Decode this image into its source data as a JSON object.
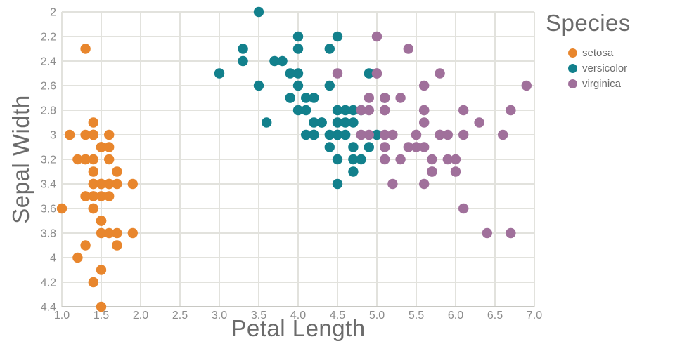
{
  "chart_data": {
    "type": "scatter",
    "title": "",
    "xlabel": "Petal Length",
    "ylabel": "Sepal Width",
    "xlim": [
      1.0,
      7.0
    ],
    "ylim": [
      2.0,
      4.4
    ],
    "y_axis_reversed": true,
    "grid": true,
    "x_ticks": [
      1.0,
      1.5,
      2.0,
      2.5,
      3.0,
      3.5,
      4.0,
      4.5,
      5.0,
      5.5,
      6.0,
      6.5,
      7.0
    ],
    "x_tick_labels": [
      "1.0",
      "1.5",
      "2.0",
      "2.5",
      "3.0",
      "3.5",
      "4.0",
      "4.5",
      "5.0",
      "5.5",
      "6.0",
      "6.5",
      "7.0"
    ],
    "y_ticks": [
      2.0,
      2.2,
      2.4,
      2.6,
      2.8,
      3.0,
      3.2,
      3.4,
      3.6,
      3.8,
      4.0,
      4.2,
      4.4
    ],
    "y_tick_labels": [
      "2",
      "2.2",
      "2.4",
      "2.6",
      "2.8",
      "3",
      "3.2",
      "3.4",
      "3.6",
      "3.8",
      "4",
      "4.2",
      "4.4"
    ],
    "legend_title": "Species",
    "legend_position": "top-right-outside",
    "colors": {
      "grid": "#e2e2dd",
      "axis_line": "#c8c8c3",
      "tick_label": "#8c8c8c",
      "title_text": "#6b6b6b"
    },
    "series": [
      {
        "name": "setosa",
        "color": "#e8862d",
        "points": [
          [
            1.4,
            3.5
          ],
          [
            1.4,
            3.0
          ],
          [
            1.3,
            3.2
          ],
          [
            1.5,
            3.1
          ],
          [
            1.4,
            3.6
          ],
          [
            1.7,
            3.9
          ],
          [
            1.4,
            3.4
          ],
          [
            1.5,
            3.4
          ],
          [
            1.4,
            2.9
          ],
          [
            1.5,
            3.1
          ],
          [
            1.5,
            3.7
          ],
          [
            1.6,
            3.4
          ],
          [
            1.4,
            3.0
          ],
          [
            1.1,
            3.0
          ],
          [
            1.2,
            4.0
          ],
          [
            1.5,
            4.4
          ],
          [
            1.3,
            3.9
          ],
          [
            1.4,
            3.5
          ],
          [
            1.7,
            3.8
          ],
          [
            1.5,
            3.8
          ],
          [
            1.7,
            3.4
          ],
          [
            1.5,
            3.7
          ],
          [
            1.0,
            3.6
          ],
          [
            1.7,
            3.3
          ],
          [
            1.9,
            3.4
          ],
          [
            1.6,
            3.0
          ],
          [
            1.6,
            3.4
          ],
          [
            1.5,
            3.5
          ],
          [
            1.4,
            3.4
          ],
          [
            1.6,
            3.2
          ],
          [
            1.6,
            3.1
          ],
          [
            1.5,
            3.4
          ],
          [
            1.5,
            4.1
          ],
          [
            1.4,
            4.2
          ],
          [
            1.5,
            3.1
          ],
          [
            1.2,
            3.2
          ],
          [
            1.3,
            3.5
          ],
          [
            1.4,
            3.6
          ],
          [
            1.3,
            3.0
          ],
          [
            1.5,
            3.4
          ],
          [
            1.3,
            3.5
          ],
          [
            1.3,
            2.3
          ],
          [
            1.3,
            3.2
          ],
          [
            1.6,
            3.5
          ],
          [
            1.9,
            3.8
          ],
          [
            1.4,
            3.0
          ],
          [
            1.6,
            3.8
          ],
          [
            1.4,
            3.2
          ],
          [
            1.5,
            3.7
          ],
          [
            1.4,
            3.3
          ]
        ]
      },
      {
        "name": "versicolor",
        "color": "#12808c",
        "points": [
          [
            4.7,
            3.2
          ],
          [
            4.5,
            3.2
          ],
          [
            4.9,
            3.1
          ],
          [
            4.0,
            2.3
          ],
          [
            4.6,
            2.8
          ],
          [
            4.5,
            2.8
          ],
          [
            4.7,
            3.3
          ],
          [
            3.3,
            2.4
          ],
          [
            4.6,
            2.9
          ],
          [
            3.9,
            2.7
          ],
          [
            3.5,
            2.0
          ],
          [
            4.2,
            3.0
          ],
          [
            4.0,
            2.2
          ],
          [
            4.7,
            2.9
          ],
          [
            3.6,
            2.9
          ],
          [
            4.4,
            3.1
          ],
          [
            4.5,
            3.0
          ],
          [
            4.1,
            2.7
          ],
          [
            4.5,
            2.2
          ],
          [
            3.9,
            2.5
          ],
          [
            4.8,
            3.2
          ],
          [
            4.0,
            2.8
          ],
          [
            4.9,
            2.5
          ],
          [
            4.7,
            2.8
          ],
          [
            4.3,
            2.9
          ],
          [
            4.4,
            3.0
          ],
          [
            4.8,
            2.8
          ],
          [
            5.0,
            3.0
          ],
          [
            4.5,
            2.9
          ],
          [
            3.5,
            2.6
          ],
          [
            3.8,
            2.4
          ],
          [
            3.7,
            2.4
          ],
          [
            3.9,
            2.7
          ],
          [
            5.1,
            2.7
          ],
          [
            4.5,
            3.0
          ],
          [
            4.5,
            3.4
          ],
          [
            4.7,
            3.1
          ],
          [
            4.4,
            2.3
          ],
          [
            4.1,
            3.0
          ],
          [
            4.0,
            2.5
          ],
          [
            4.4,
            2.6
          ],
          [
            4.6,
            3.0
          ],
          [
            4.0,
            2.6
          ],
          [
            3.3,
            2.3
          ],
          [
            4.2,
            2.7
          ],
          [
            4.2,
            3.0
          ],
          [
            4.2,
            2.9
          ],
          [
            4.3,
            2.9
          ],
          [
            3.0,
            2.5
          ],
          [
            4.1,
            2.8
          ]
        ]
      },
      {
        "name": "virginica",
        "color": "#a0709b",
        "points": [
          [
            6.0,
            3.3
          ],
          [
            5.1,
            2.7
          ],
          [
            5.9,
            3.0
          ],
          [
            5.6,
            2.9
          ],
          [
            5.8,
            3.0
          ],
          [
            6.6,
            3.0
          ],
          [
            4.5,
            2.5
          ],
          [
            6.3,
            2.9
          ],
          [
            5.8,
            2.5
          ],
          [
            6.1,
            3.6
          ],
          [
            5.1,
            3.2
          ],
          [
            5.3,
            2.7
          ],
          [
            5.5,
            3.0
          ],
          [
            5.0,
            2.5
          ],
          [
            5.1,
            2.8
          ],
          [
            5.3,
            3.2
          ],
          [
            5.5,
            3.0
          ],
          [
            6.7,
            3.8
          ],
          [
            6.9,
            2.6
          ],
          [
            5.0,
            2.2
          ],
          [
            5.7,
            3.2
          ],
          [
            4.9,
            2.8
          ],
          [
            6.7,
            2.8
          ],
          [
            4.9,
            2.7
          ],
          [
            5.7,
            3.3
          ],
          [
            6.0,
            3.2
          ],
          [
            4.8,
            2.8
          ],
          [
            4.9,
            3.0
          ],
          [
            5.6,
            2.8
          ],
          [
            5.8,
            3.0
          ],
          [
            6.1,
            2.8
          ],
          [
            6.4,
            3.8
          ],
          [
            5.6,
            2.8
          ],
          [
            5.1,
            2.8
          ],
          [
            5.6,
            2.6
          ],
          [
            6.1,
            3.0
          ],
          [
            5.6,
            3.4
          ],
          [
            5.5,
            3.1
          ],
          [
            4.8,
            3.0
          ],
          [
            5.4,
            3.1
          ],
          [
            5.6,
            3.1
          ],
          [
            5.1,
            3.1
          ],
          [
            5.1,
            2.7
          ],
          [
            5.9,
            3.2
          ],
          [
            5.7,
            3.3
          ],
          [
            5.2,
            3.0
          ],
          [
            5.0,
            2.5
          ],
          [
            5.2,
            3.4
          ],
          [
            5.4,
            2.3
          ],
          [
            5.1,
            3.0
          ]
        ]
      }
    ]
  }
}
